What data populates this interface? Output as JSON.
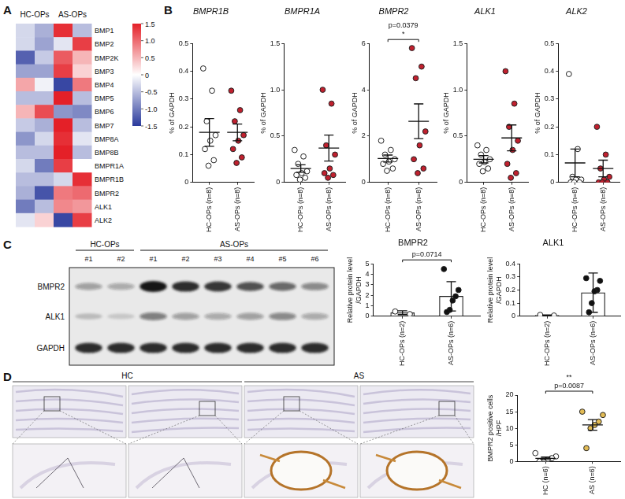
{
  "panel_labels": [
    "A",
    "B",
    "C",
    "D"
  ],
  "chart_data": [
    {
      "type": "heatmap",
      "column_groups": [
        {
          "label": "HC-OPs",
          "columns": 2
        },
        {
          "label": "AS-OPs",
          "columns": 2
        }
      ],
      "rows": [
        "BMP1",
        "BMP2",
        "BMP2K",
        "BMP3",
        "BMP4",
        "BMP5",
        "BMP6",
        "BMP7",
        "BMP8A",
        "BMP8B",
        "BMPR1A",
        "BMPR1B",
        "BMPR2",
        "ALK1",
        "ALK2"
      ],
      "values": [
        [
          -0.3,
          -0.6,
          1.4,
          -0.5
        ],
        [
          -0.3,
          -0.7,
          -0.2,
          1.3
        ],
        [
          -1.2,
          -0.4,
          1.1,
          0.5
        ],
        [
          -0.7,
          -0.7,
          1.3,
          0.3
        ],
        [
          0.6,
          -0.1,
          -1.4,
          0.9
        ],
        [
          -0.5,
          -0.5,
          1.5,
          -0.5
        ],
        [
          0.5,
          1.2,
          -0.8,
          -0.9
        ],
        [
          -0.4,
          -0.6,
          1.5,
          -0.5
        ],
        [
          -0.8,
          -0.3,
          1.4,
          -0.2
        ],
        [
          -0.5,
          -0.5,
          1.5,
          -0.5
        ],
        [
          -0.3,
          -1.0,
          1.3,
          0.0
        ],
        [
          -0.5,
          -0.5,
          -0.3,
          1.4
        ],
        [
          -0.6,
          -1.3,
          0.9,
          1.0
        ],
        [
          -1.0,
          -0.5,
          0.8,
          0.7
        ],
        [
          -0.2,
          0.3,
          -1.4,
          1.3
        ]
      ],
      "colorbar": {
        "range": [
          -1.5,
          1.5
        ],
        "ticks": [
          1.5,
          {
            "value": 1,
            "label": "1.0"
          },
          0.5,
          0,
          -0.5,
          {
            "value": -1,
            "label": "-1.0"
          },
          -1.5
        ]
      }
    },
    {
      "type": "dot",
      "title": "BMPR1B",
      "y_label": "% of GAPDH",
      "grid": false,
      "categories": [
        "HC-OPs (n=8)",
        "AS-OPs (n=8)"
      ],
      "colors": [
        "#ffffff",
        "#c0202e"
      ],
      "values": [
        [
          0.41,
          0.33,
          0.22,
          0.17,
          0.15,
          0.12,
          0.08,
          0.06
        ],
        [
          0.33,
          0.26,
          0.22,
          0.17,
          0.15,
          0.12,
          0.09,
          0.07
        ]
      ],
      "mean": [
        0.18,
        0.18
      ],
      "error": [
        0.05,
        0.03
      ],
      "ylim": [
        0,
        0.5
      ],
      "yticks": [
        0,
        0.1,
        0.2,
        0.3,
        0.4,
        0.5
      ]
    },
    {
      "type": "dot",
      "title": "BMPR1A",
      "y_label": "% of GAPDH",
      "grid": false,
      "categories": [
        "HC-OPs (n=8)",
        "AS-OPs (n=8)"
      ],
      "colors": [
        "#ffffff",
        "#c0202e"
      ],
      "values": [
        [
          0.35,
          0.28,
          0.2,
          0.12,
          0.1,
          0.08,
          0.05,
          0.03
        ],
        [
          1.0,
          0.85,
          0.4,
          0.3,
          0.15,
          0.1,
          0.08,
          0.05
        ]
      ],
      "mean": [
        0.15,
        0.37
      ],
      "error": [
        0.04,
        0.14
      ],
      "ylim": [
        0,
        1.5
      ],
      "yticks": [
        0,
        0.5,
        {
          "value": 1,
          "label": "1.0"
        },
        1.5
      ]
    },
    {
      "type": "dot",
      "title": "BMPR2",
      "y_label": "% of GAPDH",
      "grid": false,
      "categories": [
        "HC-OPs (n=8)",
        "AS-OPs (n=8)"
      ],
      "colors": [
        "#ffffff",
        "#c0202e"
      ],
      "values": [
        [
          1.8,
          1.4,
          1.2,
          1.0,
          0.9,
          0.8,
          0.6,
          0.5
        ],
        [
          5.8,
          5.0,
          4.5,
          2.2,
          1.6,
          1.0,
          0.6,
          0.4
        ]
      ],
      "mean": [
        1.03,
        2.64
      ],
      "error": [
        0.15,
        0.75
      ],
      "ylim": [
        0,
        6
      ],
      "yticks": [
        0,
        2,
        4,
        6
      ],
      "annotation": [
        "p=0.0379",
        "*"
      ]
    },
    {
      "type": "dot",
      "title": "ALK1",
      "y_label": "% of GAPDH",
      "grid": false,
      "categories": [
        "HC-OPs (n=8)",
        "AS-OPs (n=8)"
      ],
      "colors": [
        "#ffffff",
        "#c0202e"
      ],
      "values": [
        [
          0.4,
          0.35,
          0.3,
          0.25,
          0.22,
          0.2,
          0.15,
          0.12
        ],
        [
          1.2,
          0.85,
          0.6,
          0.45,
          0.35,
          0.2,
          0.1,
          0.05
        ]
      ],
      "mean": [
        0.25,
        0.48
      ],
      "error": [
        0.04,
        0.14
      ],
      "ylim": [
        0,
        1.5
      ],
      "yticks": [
        0,
        0.5,
        {
          "value": 1,
          "label": "1.0"
        },
        1.5
      ]
    },
    {
      "type": "dot",
      "title": "ALK2",
      "y_label": "% of GAPDH",
      "grid": false,
      "categories": [
        "HC-OPs (n=8)",
        "AS-OPs (n=8)"
      ],
      "colors": [
        "#ffffff",
        "#c0202e"
      ],
      "values": [
        [
          0.39,
          0.12,
          0.02,
          0.01,
          0.01,
          0.0,
          0.0,
          0.0
        ],
        [
          0.2,
          0.1,
          0.05,
          0.02,
          0.01,
          0.0,
          0.0,
          0.0
        ]
      ],
      "mean": [
        0.07,
        0.05
      ],
      "error": [
        0.05,
        0.03
      ],
      "ylim": [
        0,
        0.5
      ],
      "yticks": [
        0,
        0.1,
        0.2,
        0.3,
        0.4,
        0.5
      ]
    },
    {
      "type": "bar",
      "title": "BMPR2",
      "y_label": [
        "Relative protein level",
        "/GAPDH"
      ],
      "grid": false,
      "categories": [
        "HC-OPs (n=2)",
        "AS-OPs (n=6)"
      ],
      "colors": [
        "#ffffff",
        "#111111"
      ],
      "values": [
        [
          0.45,
          0.2
        ],
        [
          4.5,
          2.5,
          1.9,
          1.5,
          0.6,
          0.4
        ]
      ],
      "mean": [
        0.33,
        1.9
      ],
      "error": [
        0.18,
        1.4
      ],
      "ylim": [
        0,
        5
      ],
      "yticks": [
        0,
        1,
        2,
        3,
        4,
        5
      ],
      "annotation": [
        "p=0.0714"
      ]
    },
    {
      "type": "bar",
      "title": "ALK1",
      "y_label": [
        "Relative protein level",
        "/GAPDH"
      ],
      "grid": false,
      "categories": [
        "HC-OPs (n=2)",
        "AS-OPs (n=6)"
      ],
      "colors": [
        "#ffffff",
        "#111111"
      ],
      "values": [
        [
          0.01,
          0.005
        ],
        [
          0.29,
          0.27,
          0.2,
          0.19,
          0.1,
          0.03
        ]
      ],
      "mean": [
        0.007,
        0.18
      ],
      "error": [
        0.003,
        0.15
      ],
      "ylim": [
        0,
        0.4
      ],
      "yticks": [
        0,
        0.1,
        0.2,
        0.3,
        0.4
      ]
    },
    {
      "type": "dot",
      "y_label": [
        "BMPR2 positive cells",
        "/HPF"
      ],
      "grid": false,
      "categories": [
        "HC (n=6)",
        "AS (n=6)"
      ],
      "colors": [
        "#ffffff",
        "#e3bc55"
      ],
      "values": [
        [
          2.5,
          1.5,
          1.0,
          0.5,
          0.0,
          0.0
        ],
        [
          15,
          14,
          12,
          11,
          10,
          4
        ]
      ],
      "mean": [
        0.9,
        11
      ],
      "error": [
        0.4,
        1.6
      ],
      "ylim": [
        0,
        20
      ],
      "yticks": [
        0,
        5,
        10,
        15,
        20
      ],
      "annotation": [
        "**",
        "p=0.0087"
      ]
    }
  ],
  "blot": {
    "groups": [
      {
        "label": "HC-OPs",
        "lanes": [
          "#1",
          "#2"
        ]
      },
      {
        "label": "AS-OPs",
        "lanes": [
          "#1",
          "#2",
          "#3",
          "#4",
          "#5",
          "#6"
        ]
      }
    ],
    "rows": [
      {
        "label": "BMPR2",
        "intensity": [
          0.35,
          0.3,
          1.0,
          0.9,
          0.85,
          0.7,
          0.6,
          0.45
        ]
      },
      {
        "label": "ALK1",
        "intensity": [
          0.2,
          0.15,
          0.5,
          0.35,
          0.3,
          0.35,
          0.45,
          0.3
        ]
      },
      {
        "label": "GAPDH",
        "intensity": [
          0.9,
          0.9,
          0.9,
          0.9,
          0.9,
          0.9,
          0.9,
          0.9
        ]
      }
    ]
  },
  "histology": {
    "groups": [
      {
        "label": "HC",
        "images": 2
      },
      {
        "label": "AS",
        "images": 2
      }
    ]
  }
}
